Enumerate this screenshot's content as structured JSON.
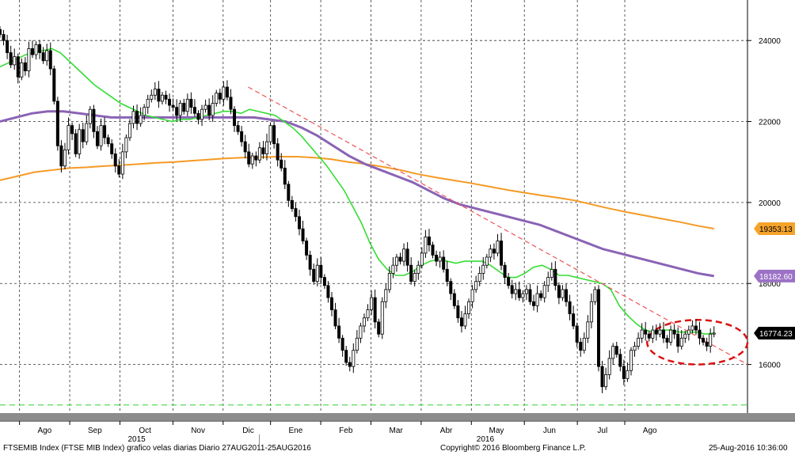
{
  "chart_data": {
    "type": "line",
    "title": "",
    "subtitle": "",
    "xlabel": "",
    "ylabel": "",
    "xlim": [
      0,
      268
    ],
    "ylim": [
      14800,
      25000
    ],
    "grid": true,
    "y_ticks": [
      16000,
      18000,
      20000,
      22000,
      24000
    ],
    "y_tick_labels": [
      "16000",
      "18000",
      "20000",
      "22000",
      "24000"
    ],
    "month_ticks": [
      {
        "label": "Ago",
        "pos": 16
      },
      {
        "label": "Sep",
        "pos": 34
      },
      {
        "label": "Oct",
        "pos": 52
      },
      {
        "label": "Nov",
        "pos": 71
      },
      {
        "label": "Dic",
        "pos": 89
      },
      {
        "label": "Ene",
        "pos": 106
      },
      {
        "label": "Feb",
        "pos": 124
      },
      {
        "label": "Mar",
        "pos": 142
      },
      {
        "label": "Abr",
        "pos": 160
      },
      {
        "label": "May",
        "pos": 178
      },
      {
        "label": "Jun",
        "pos": 197
      },
      {
        "label": "Jul",
        "pos": 216
      },
      {
        "label": "Ago",
        "pos": 233
      }
    ],
    "year_labels": [
      {
        "label": "2015",
        "pos": 49
      },
      {
        "label": "2016",
        "pos": 174
      }
    ],
    "candles_close": [
      24150,
      24000,
      23700,
      23400,
      23600,
      23100,
      23450,
      23250,
      23800,
      23650,
      23900,
      23700,
      23500,
      23750,
      23300,
      22500,
      21400,
      20900,
      21300,
      21900,
      21700,
      21200,
      21800,
      21500,
      21950,
      22300,
      21750,
      21400,
      21900,
      21600,
      21450,
      21200,
      20900,
      20700,
      21250,
      21600,
      21950,
      22250,
      21950,
      22150,
      22350,
      22550,
      22650,
      22800,
      22500,
      22650,
      22550,
      22400,
      22350,
      22150,
      22450,
      22250,
      22550,
      22350,
      22200,
      22050,
      22300,
      22400,
      22150,
      22450,
      22700,
      22550,
      22850,
      22600,
      22300,
      21900,
      21750,
      21500,
      21250,
      20950,
      21150,
      21050,
      21350,
      21200,
      21500,
      21900,
      21450,
      21050,
      20850,
      20450,
      20050,
      19850,
      19650,
      19350,
      19050,
      18700,
      18350,
      18050,
      18450,
      18150,
      17950,
      17650,
      17350,
      16950,
      16650,
      16350,
      16050,
      15950,
      16350,
      16650,
      16950,
      17150,
      17350,
      17650,
      17050,
      16750,
      17550,
      17850,
      18250,
      18450,
      18650,
      18550,
      18850,
      18450,
      18050,
      18250,
      18450,
      18750,
      19150,
      18950,
      18700,
      18550,
      18650,
      18350,
      18050,
      17750,
      17450,
      17150,
      16950,
      17250,
      17550,
      17850,
      18050,
      18250,
      18450,
      18650,
      18850,
      18750,
      19050,
      18450,
      18150,
      17950,
      17750,
      17850,
      17650,
      17750,
      17850,
      17550,
      17450,
      17750,
      17650,
      17950,
      18150,
      18350,
      17950,
      17650,
      17850,
      17550,
      17250,
      16950,
      16550,
      16350,
      16650,
      17050,
      17550,
      17850,
      15950,
      15450,
      15750,
      16150,
      16450,
      16250,
      15950,
      15650,
      15850,
      16350,
      16450,
      16650,
      16850,
      16750,
      16650,
      16850,
      16750,
      16850,
      16650,
      16550,
      16850,
      16750,
      16450,
      16650,
      16750,
      16850,
      16950,
      16850,
      16650,
      16550,
      16450,
      16750,
      16774
    ],
    "ma_green": [
      23350,
      23450,
      23550,
      23650,
      23700,
      23750,
      23800,
      23700,
      23500,
      23300,
      23100,
      22900,
      22750,
      22600,
      22450,
      22350,
      22250,
      22150,
      22100,
      22050,
      22000,
      22050,
      22050,
      22100,
      22150,
      22200,
      22250,
      22250,
      22200,
      22300,
      22250,
      22200,
      22150,
      22000,
      21850,
      21650,
      21400,
      21150,
      20900,
      20600,
      20300,
      19900,
      19500,
      19000,
      18600,
      18350,
      18200,
      18200,
      18300,
      18450,
      18550,
      18600,
      18550,
      18500,
      18550,
      18550,
      18550,
      18450,
      18300,
      18150,
      18150,
      18250,
      18400,
      18450,
      18350,
      18200,
      18200,
      18150,
      18100,
      18050,
      18000,
      17850,
      17450,
      17200,
      17000,
      16850,
      16800,
      16850,
      16850,
      16800,
      16800,
      16800,
      16750,
      16774
    ],
    "ma_purple": [
      22000,
      22100,
      22200,
      22250,
      22250,
      22200,
      22150,
      22100,
      22100,
      22100,
      22100,
      22100,
      22100,
      22100,
      22100,
      22100,
      22100,
      22050,
      22000,
      21850,
      21650,
      21400,
      21150,
      20950,
      20800,
      20650,
      20500,
      20300,
      20100,
      19950,
      19850,
      19750,
      19650,
      19550,
      19450,
      19300,
      19150,
      19000,
      18850,
      18750,
      18650,
      18550,
      18450,
      18350,
      18250,
      18182.6
    ],
    "ma_orange": [
      20550,
      20650,
      20750,
      20800,
      20850,
      20870,
      20900,
      20920,
      20950,
      20980,
      21000,
      21030,
      21060,
      21090,
      21110,
      21120,
      21130,
      21130,
      21110,
      21070,
      21000,
      20950,
      20880,
      20800,
      20700,
      20620,
      20550,
      20480,
      20400,
      20320,
      20250,
      20180,
      20120,
      20050,
      19950,
      19850,
      19760,
      19680,
      19600,
      19520,
      19430,
      19353.13
    ],
    "trendline": [
      {
        "x": 89,
        "y": 22850
      },
      {
        "x": 268,
        "y": 16000
      }
    ],
    "horizontal_line": 15000,
    "last_values": [
      {
        "name": "",
        "value": "19353.13",
        "color": "#f5a32b",
        "text_color": "#000000",
        "y": 19353.13
      },
      {
        "name": "",
        "value": "18182.60",
        "color": "#9b72c6",
        "text_color": "#ffffff",
        "y": 18182.6
      },
      {
        "name": "",
        "value": "16774.23",
        "color": "#000000",
        "text_color": "#ffffff",
        "y": 16774.23
      }
    ],
    "highlight_region": {
      "x_range": [
        232,
        268
      ],
      "y_range": [
        16000,
        17100
      ]
    }
  },
  "colors": {
    "green": "#33dd33",
    "purple": "#8a63b5",
    "orange": "#f59a24",
    "trend": "#ee5555",
    "hline": "#55dd55",
    "highlight": "#dd1111"
  },
  "footer": {
    "left": "FTSEMIB Index (FTSE MIB Index) grafico velas diarias  Diario 27AUG2011-25AUG2016",
    "center": "Copyright© 2016 Bloomberg Finance L.P.",
    "right": "25-Aug-2016 10:36:00"
  }
}
